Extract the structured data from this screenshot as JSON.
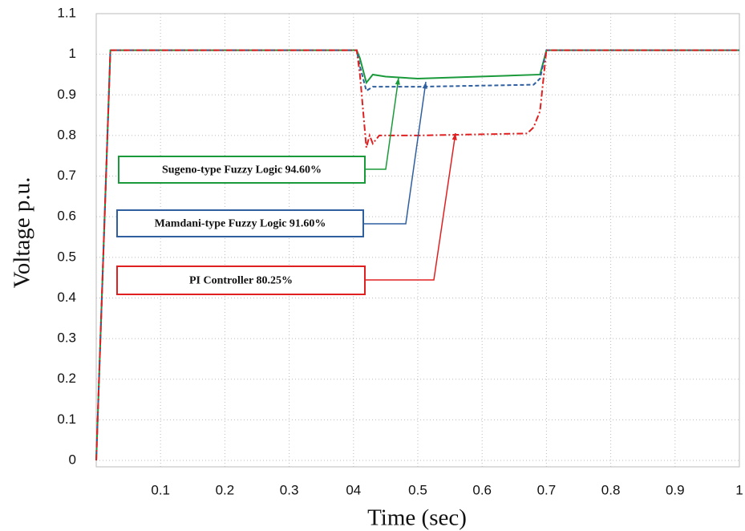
{
  "chart_data": {
    "type": "line",
    "xlabel": "Time (sec)",
    "ylabel": "Voltage p.u.",
    "xlim": [
      0,
      1
    ],
    "ylim": [
      0,
      1.1
    ],
    "xticks": [
      0.1,
      0.2,
      0.3,
      {
        "value": 0.4,
        "label": "04"
      },
      0.5,
      0.6,
      0.7,
      0.8,
      0.9,
      1
    ],
    "yticks": [
      0,
      0.1,
      0.2,
      0.3,
      0.4,
      0.5,
      0.6,
      0.7,
      0.8,
      0.9,
      1,
      1.1
    ],
    "grid": true,
    "series": [
      {
        "name": "Sugeno-type Fuzzy Logic 94.60%",
        "color": "#1a9a3a",
        "style": "solid",
        "x": [
          0,
          0.022,
          0.405,
          0.41,
          0.42,
          0.43,
          0.45,
          0.5,
          0.69,
          0.7,
          1
        ],
        "values": [
          0,
          1.01,
          1.01,
          0.99,
          0.93,
          0.95,
          0.945,
          0.94,
          0.95,
          1.01,
          1.01
        ]
      },
      {
        "name": "Mamdani-type Fuzzy Logic 91.60%",
        "color": "#2f5f9f",
        "style": "dashed",
        "x": [
          0,
          0.022,
          0.405,
          0.41,
          0.42,
          0.43,
          0.5,
          0.68,
          0.69,
          0.7,
          1
        ],
        "values": [
          0,
          1.01,
          1.01,
          0.97,
          0.91,
          0.92,
          0.92,
          0.925,
          0.94,
          1.01,
          1.01
        ]
      },
      {
        "name": "PI Controller 80.25%",
        "color": "#e02020",
        "style": "dashdot",
        "x": [
          0,
          0.022,
          0.405,
          0.41,
          0.42,
          0.425,
          0.43,
          0.44,
          0.5,
          0.67,
          0.68,
          0.69,
          0.7,
          1
        ],
        "values": [
          0,
          1.01,
          1.01,
          0.95,
          0.77,
          0.8,
          0.78,
          0.8,
          0.8,
          0.805,
          0.82,
          0.86,
          1.01,
          1.01
        ]
      }
    ]
  }
}
